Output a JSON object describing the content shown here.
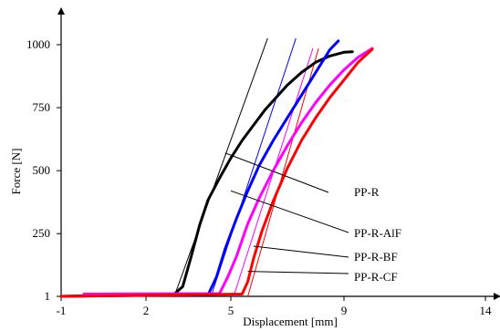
{
  "chart_data": {
    "type": "line",
    "xlabel": "Displacement [mm]",
    "ylabel": "Force [N]",
    "xlim": [
      -1,
      14
    ],
    "ylim": [
      1,
      1100
    ],
    "x_ticks": [
      -1,
      2,
      5,
      9,
      14
    ],
    "y_ticks": [
      1,
      250,
      500,
      750,
      1000
    ],
    "series": [
      {
        "name": "PP-R",
        "color": "#000000",
        "x": [
          -1,
          3.0,
          3.3,
          3.6,
          3.9,
          4.2,
          4.6,
          5.0,
          5.4,
          5.8,
          6.2,
          6.6,
          7.0,
          7.5,
          8.0,
          8.5,
          9.0,
          9.3
        ],
        "y": [
          1,
          10,
          40,
          160,
          285,
          385,
          470,
          550,
          620,
          680,
          740,
          790,
          840,
          890,
          930,
          955,
          970,
          972
        ],
        "tangent": {
          "x": [
            3.0,
            6.3
          ],
          "y": [
            1,
            1025
          ]
        }
      },
      {
        "name": "PP-R-AlF",
        "color": "#0000ff",
        "x": [
          -1,
          4.2,
          4.5,
          4.8,
          5.2,
          5.6,
          6.0,
          6.5,
          7.0,
          7.5,
          8.0,
          8.5,
          8.8
        ],
        "y": [
          1,
          8,
          80,
          190,
          310,
          420,
          520,
          620,
          710,
          800,
          890,
          980,
          1015
        ],
        "tangent": {
          "x": [
            4.3,
            7.3
          ],
          "y": [
            1,
            1025
          ]
        }
      },
      {
        "name": "PP-R-BF",
        "color": "#ff00ff",
        "x": [
          -0.2,
          4.6,
          4.9,
          5.2,
          5.6,
          6.0,
          6.5,
          7.0,
          7.5,
          8.0,
          8.5,
          9.0,
          9.5,
          10.0
        ],
        "y": [
          10,
          12,
          80,
          160,
          290,
          390,
          500,
          600,
          690,
          770,
          840,
          900,
          950,
          985
        ],
        "tangent": {
          "x": [
            5.1,
            7.9
          ],
          "y": [
            1,
            985
          ]
        }
      },
      {
        "name": "PP-R-CF",
        "color": "#ff0000",
        "x": [
          -1,
          5.4,
          5.6,
          5.8,
          6.1,
          6.5,
          7.0,
          7.5,
          8.0,
          8.5,
          9.0,
          9.5,
          10.0
        ],
        "y": [
          1,
          10,
          60,
          150,
          260,
          380,
          510,
          620,
          710,
          790,
          860,
          930,
          982
        ],
        "tangent": {
          "x": [
            5.6,
            8.1
          ],
          "y": [
            1,
            985
          ]
        }
      }
    ],
    "grid": false,
    "legend": "callout-labels-right"
  }
}
